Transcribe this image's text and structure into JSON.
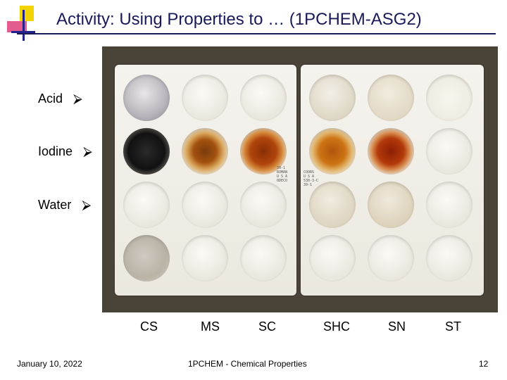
{
  "slide": {
    "title": "Activity: Using Properties to … (1PCHEM-ASG2)",
    "row_labels": [
      {
        "text": "Acid",
        "arrow": "⮚"
      },
      {
        "text": "Iodine",
        "arrow": "⮚"
      },
      {
        "text": "Water",
        "arrow": "⮚"
      }
    ],
    "column_labels": [
      "CS",
      "MS",
      "SC",
      "SHC",
      "SN",
      "ST"
    ],
    "tray_markings": {
      "left": [
        "39-1",
        "ROMAN",
        "U S A",
        "ODECO"
      ],
      "right": [
        "COORS",
        "U S A",
        "530-3-C",
        "39-1"
      ]
    },
    "footer": {
      "date": "January 10, 2022",
      "center": "1PCHEM - Chemical Properties",
      "page_number": "12"
    }
  },
  "colors": {
    "title": "#1a1a5a",
    "logo_yellow": "#f2d400",
    "logo_pink": "#e35b8f",
    "logo_blue": "#23238e"
  }
}
